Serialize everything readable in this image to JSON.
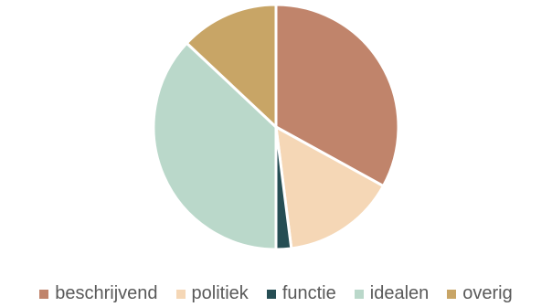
{
  "chart_data": {
    "type": "pie",
    "title": "",
    "legend_position": "bottom",
    "slices": [
      {
        "label": "beschrijvend",
        "value": 33,
        "color": "#C0846B"
      },
      {
        "label": "politiek",
        "value": 15,
        "color": "#F5D7B6"
      },
      {
        "label": "functie",
        "value": 2,
        "color": "#264E54"
      },
      {
        "label": "idealen",
        "value": 37,
        "color": "#BAD8CA"
      },
      {
        "label": "overig",
        "value": 13,
        "color": "#C8A566"
      }
    ]
  }
}
